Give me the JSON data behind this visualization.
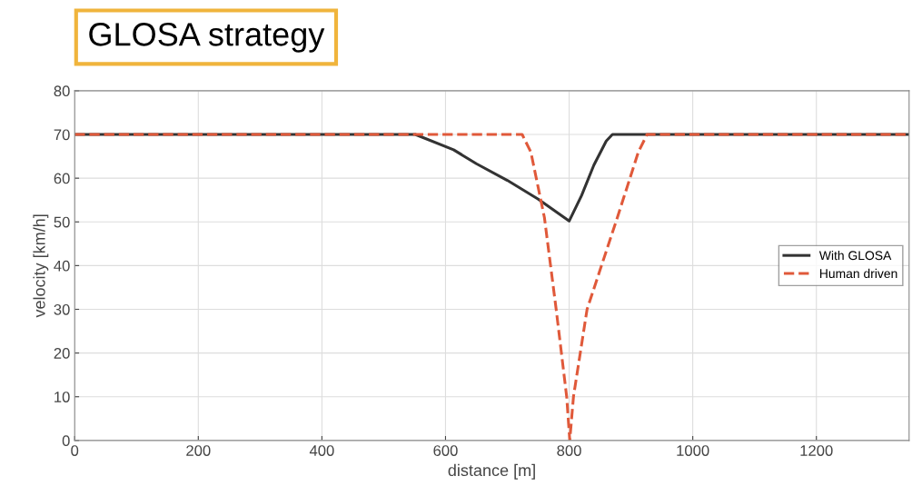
{
  "chart_data": {
    "type": "line",
    "title": "GLOSA strategy",
    "xlabel": "distance [m]",
    "ylabel": "velocity [km/h]",
    "xlim": [
      0,
      1350
    ],
    "ylim": [
      0,
      80
    ],
    "xticks": [
      0,
      200,
      400,
      600,
      800,
      1000,
      1200
    ],
    "yticks": [
      0,
      10,
      20,
      30,
      40,
      50,
      60,
      70,
      80
    ],
    "grid": true,
    "legend": "right",
    "series": [
      {
        "name": "With GLOSA",
        "color": "#333333",
        "line_style": "solid",
        "x": [
          0,
          551,
          613,
          650,
          700,
          750,
          800,
          820,
          840,
          860,
          870,
          1350
        ],
        "values": [
          70,
          70,
          66.5,
          63.3,
          59.5,
          55.2,
          50.2,
          56,
          63,
          68.5,
          70,
          70
        ]
      },
      {
        "name": "Human driven",
        "color": "#e0593a",
        "line_style": "dashed",
        "x": [
          0,
          724,
          738,
          760,
          779,
          796,
          801,
          807,
          829,
          878,
          912,
          926,
          1350
        ],
        "values": [
          70,
          70,
          66,
          51,
          30,
          10,
          0,
          10,
          30,
          51,
          66,
          70,
          70
        ]
      }
    ]
  }
}
